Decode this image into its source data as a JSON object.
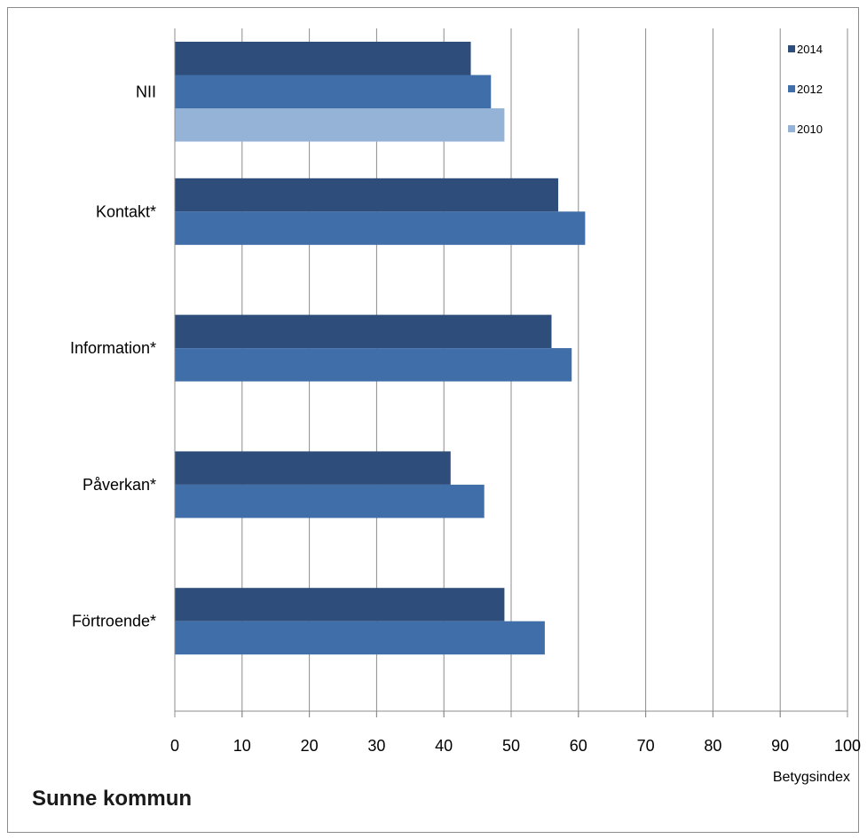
{
  "footer": {
    "title": "Sunne kommun"
  },
  "chart_data": {
    "type": "bar",
    "orientation": "horizontal",
    "categories": [
      "NII",
      "Kontakt*",
      "Information*",
      "Påverkan*",
      "Förtroende*"
    ],
    "series": [
      {
        "name": "2014",
        "color": "#2E4D7A",
        "values": [
          44,
          57,
          56,
          41,
          49
        ]
      },
      {
        "name": "2012",
        "color": "#3F6EA8",
        "values": [
          47,
          61,
          59,
          46,
          55
        ]
      },
      {
        "name": "2010",
        "color": "#95B3D7",
        "values": [
          49,
          null,
          null,
          null,
          null
        ]
      }
    ],
    "xlabel": "Betygsindex",
    "xlim": [
      0,
      100
    ],
    "x_ticks": [
      "0",
      "10",
      "20",
      "30",
      "40",
      "50",
      "60",
      "70",
      "80",
      "90",
      "100"
    ],
    "grid": true,
    "legend_position": "top-right"
  }
}
